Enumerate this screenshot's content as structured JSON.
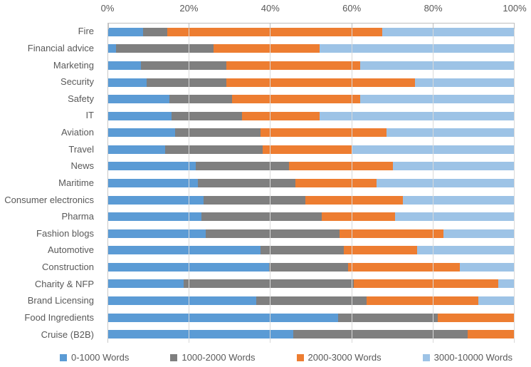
{
  "colors": {
    "background": "#FFFFFF",
    "axis_line": "#BFBFBF",
    "gridline": "#D9D9D9",
    "text": "#595959",
    "series_blue": "#5B9BD5",
    "series_gray": "#7F7F7F",
    "series_orange": "#ED7D31",
    "series_lightblue": "#9DC3E6"
  },
  "chart_data": {
    "type": "bar",
    "orientation": "horizontal",
    "stacked": true,
    "stack_total": 100,
    "unit": "%",
    "title": "",
    "xlabel": "",
    "ylabel": "",
    "xlim": [
      0,
      100
    ],
    "x_tick_labels": [
      "0%",
      "20%",
      "40%",
      "60%",
      "80%",
      "100%"
    ],
    "x_tick_values": [
      0,
      20,
      40,
      60,
      80,
      100
    ],
    "grid": "vertical",
    "legend_position": "bottom",
    "categories": [
      "Fire",
      "Financial advice",
      "Marketing",
      "Security",
      "Safety",
      "IT",
      "Aviation",
      "Travel",
      "News",
      "Maritime",
      "Consumer electronics",
      "Pharma",
      "Fashion blogs",
      "Automotive",
      "Construction",
      "Charity & NFP",
      "Brand Licensing",
      "Food Ingredients",
      "Cruise (B2B)"
    ],
    "series": [
      {
        "name": "0-1000 Words",
        "color": "#5B9BD5",
        "values": [
          8.5,
          2,
          8,
          9.5,
          15,
          15.5,
          16.5,
          14,
          21.5,
          22,
          23.5,
          23,
          24,
          37.5,
          39.5,
          18.5,
          36.5,
          56.5,
          45.5
        ]
      },
      {
        "name": "1000-2000 Words",
        "color": "#7F7F7F",
        "values": [
          6,
          24,
          21,
          19.5,
          15.5,
          17.5,
          21,
          24,
          23,
          24,
          25,
          29.5,
          33,
          20.5,
          19.5,
          42,
          27,
          24.5,
          43
        ]
      },
      {
        "name": "2000-3000 Words",
        "color": "#ED7D31",
        "values": [
          53,
          26,
          33,
          46.5,
          31.5,
          19,
          31,
          22,
          25.5,
          20,
          24,
          18,
          25.5,
          18,
          27.5,
          35.5,
          27.5,
          19,
          11.5
        ]
      },
      {
        "name": "3000-10000 Words",
        "color": "#9DC3E6",
        "values": [
          32.5,
          48,
          38,
          24.5,
          38,
          48,
          31.5,
          40,
          30,
          34,
          27.5,
          29.5,
          17.5,
          24,
          13.5,
          4,
          9,
          0,
          0
        ]
      }
    ]
  }
}
